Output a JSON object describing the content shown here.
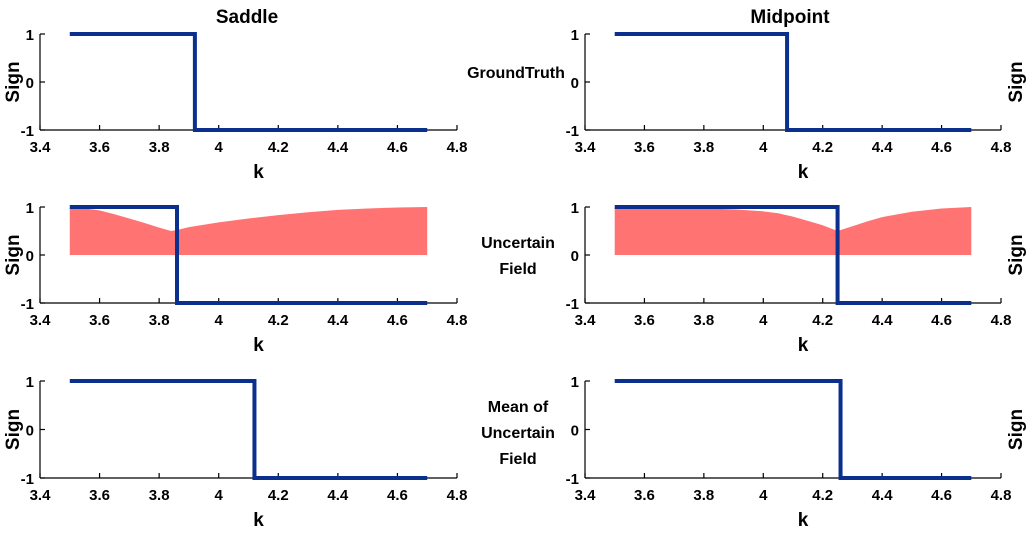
{
  "colors": {
    "step": "#0a2f8c",
    "band": "#ff7373",
    "axis": "#000000"
  },
  "column_titles": [
    "Saddle",
    "Midpoint"
  ],
  "row_labels": [
    "GroundTruth",
    "Uncertain Field",
    "Mean of Uncertain Field"
  ],
  "chart_data": [
    {
      "type": "line",
      "column": "Saddle",
      "row": "GroundTruth",
      "xlabel": "k",
      "ylabel": "Sign",
      "ylabel_side": "left",
      "xlim": [
        3.4,
        4.8
      ],
      "ylim": [
        -1,
        1
      ],
      "xticks": [
        "3.4",
        "3.6",
        "3.8",
        "4",
        "4.2",
        "4.4",
        "4.6",
        "4.8"
      ],
      "yticks": [
        "1",
        "0",
        "-1"
      ],
      "series": [
        {
          "x": [
            3.5,
            3.92,
            3.92,
            4.7
          ],
          "y": [
            1,
            1,
            -1,
            -1
          ]
        }
      ]
    },
    {
      "type": "line",
      "column": "Midpoint",
      "row": "GroundTruth",
      "xlabel": "k",
      "ylabel": "Sign",
      "ylabel_side": "right",
      "xlim": [
        3.4,
        4.8
      ],
      "ylim": [
        -1,
        1
      ],
      "xticks": [
        "3.4",
        "3.6",
        "3.8",
        "4",
        "4.2",
        "4.4",
        "4.6",
        "4.8"
      ],
      "yticks": [
        "1",
        "0",
        "-1"
      ],
      "series": [
        {
          "x": [
            3.5,
            4.08,
            4.08,
            4.7
          ],
          "y": [
            1,
            1,
            -1,
            -1
          ]
        }
      ]
    },
    {
      "type": "area",
      "column": "Saddle",
      "row": "Uncertain Field",
      "xlabel": "k",
      "ylabel": "Sign",
      "ylabel_side": "left",
      "xlim": [
        3.4,
        4.8
      ],
      "ylim": [
        -1,
        1
      ],
      "xticks": [
        "3.4",
        "3.6",
        "3.8",
        "4",
        "4.2",
        "4.4",
        "4.6",
        "4.8"
      ],
      "yticks": [
        "1",
        "0",
        "-1"
      ],
      "band": {
        "x": [
          3.5,
          3.55,
          3.6,
          3.65,
          3.7,
          3.75,
          3.8,
          3.84,
          3.86,
          3.9,
          3.95,
          4.0,
          4.1,
          4.2,
          4.3,
          4.4,
          4.5,
          4.6,
          4.7
        ],
        "y": [
          0.98,
          0.97,
          0.93,
          0.85,
          0.76,
          0.67,
          0.57,
          0.5,
          0.52,
          0.58,
          0.63,
          0.68,
          0.76,
          0.83,
          0.89,
          0.94,
          0.97,
          0.99,
          1.0
        ]
      },
      "series": [
        {
          "x": [
            3.5,
            3.86,
            3.86,
            4.7
          ],
          "y": [
            1,
            1,
            -1,
            -1
          ]
        }
      ]
    },
    {
      "type": "area",
      "column": "Midpoint",
      "row": "Uncertain Field",
      "xlabel": "k",
      "ylabel": "Sign",
      "ylabel_side": "right",
      "xlim": [
        3.4,
        4.8
      ],
      "ylim": [
        -1,
        1
      ],
      "xticks": [
        "3.4",
        "3.6",
        "3.8",
        "4",
        "4.2",
        "4.4",
        "4.6",
        "4.8"
      ],
      "yticks": [
        "1",
        "0",
        "-1"
      ],
      "band": {
        "x": [
          3.5,
          3.6,
          3.7,
          3.8,
          3.9,
          4.0,
          4.05,
          4.1,
          4.15,
          4.2,
          4.25,
          4.3,
          4.35,
          4.4,
          4.5,
          4.6,
          4.7
        ],
        "y": [
          0.99,
          0.99,
          0.98,
          0.97,
          0.95,
          0.91,
          0.87,
          0.8,
          0.71,
          0.62,
          0.5,
          0.6,
          0.7,
          0.79,
          0.9,
          0.97,
          1.0
        ]
      },
      "series": [
        {
          "x": [
            3.5,
            4.25,
            4.25,
            4.7
          ],
          "y": [
            1,
            1,
            -1,
            -1
          ]
        }
      ]
    },
    {
      "type": "line",
      "column": "Saddle",
      "row": "Mean of Uncertain Field",
      "xlabel": "k",
      "ylabel": "Sign",
      "ylabel_side": "left",
      "xlim": [
        3.4,
        4.8
      ],
      "ylim": [
        -1,
        1
      ],
      "xticks": [
        "3.4",
        "3.6",
        "3.8",
        "4",
        "4.2",
        "4.4",
        "4.6",
        "4.8"
      ],
      "yticks": [
        "1",
        "0",
        "-1"
      ],
      "series": [
        {
          "x": [
            3.5,
            4.12,
            4.12,
            4.7
          ],
          "y": [
            1,
            1,
            -1,
            -1
          ]
        }
      ]
    },
    {
      "type": "line",
      "column": "Midpoint",
      "row": "Mean of Uncertain Field",
      "xlabel": "k",
      "ylabel": "Sign",
      "ylabel_side": "right",
      "xlim": [
        3.4,
        4.8
      ],
      "ylim": [
        -1,
        1
      ],
      "xticks": [
        "3.4",
        "3.6",
        "3.8",
        "4",
        "4.2",
        "4.4",
        "4.6",
        "4.8"
      ],
      "yticks": [
        "1",
        "0",
        "-1"
      ],
      "series": [
        {
          "x": [
            3.5,
            4.26,
            4.26,
            4.7
          ],
          "y": [
            1,
            1,
            -1,
            -1
          ]
        }
      ]
    }
  ]
}
